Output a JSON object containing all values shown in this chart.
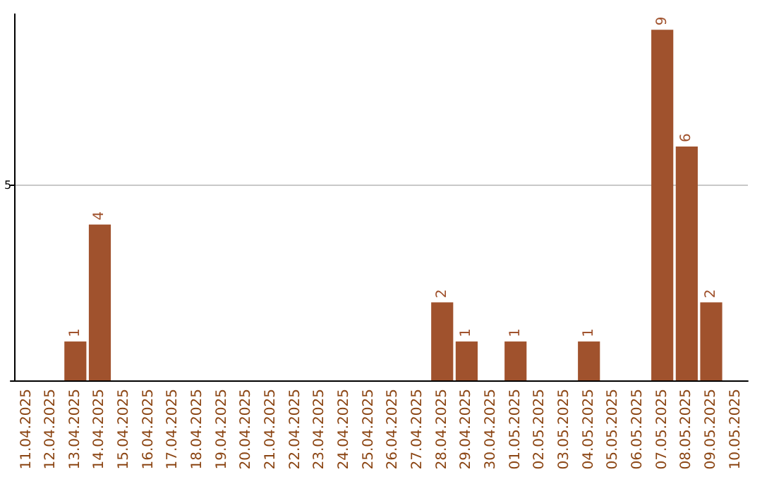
{
  "chart_data": {
    "type": "bar",
    "categories": [
      "11.04.2025",
      "12.04.2025",
      "13.04.2025",
      "14.04.2025",
      "15.04.2025",
      "16.04.2025",
      "17.04.2025",
      "18.04.2025",
      "19.04.2025",
      "20.04.2025",
      "21.04.2025",
      "22.04.2025",
      "23.04.2025",
      "24.04.2025",
      "25.04.2025",
      "26.04.2025",
      "27.04.2025",
      "28.04.2025",
      "29.04.2025",
      "30.04.2025",
      "01.05.2025",
      "02.05.2025",
      "03.05.2025",
      "04.05.2025",
      "05.05.2025",
      "06.05.2025",
      "07.05.2025",
      "08.05.2025",
      "09.05.2025",
      "10.05.2025"
    ],
    "values": [
      0,
      0,
      1,
      4,
      0,
      0,
      0,
      0,
      0,
      0,
      0,
      0,
      0,
      0,
      0,
      0,
      0,
      2,
      1,
      0,
      1,
      0,
      0,
      1,
      0,
      0,
      9,
      6,
      2,
      0
    ],
    "value_labels": [
      null,
      null,
      "1",
      "4",
      null,
      null,
      null,
      null,
      null,
      null,
      null,
      null,
      null,
      null,
      null,
      null,
      null,
      "2",
      "1",
      null,
      "1",
      null,
      null,
      "1",
      null,
      null,
      "9",
      "6",
      "2",
      null
    ],
    "color": "#a0522d",
    "ylim": [
      0,
      9.4
    ],
    "yticks": [
      {
        "value": 0,
        "label": null
      },
      5
    ],
    "grid": "y"
  }
}
